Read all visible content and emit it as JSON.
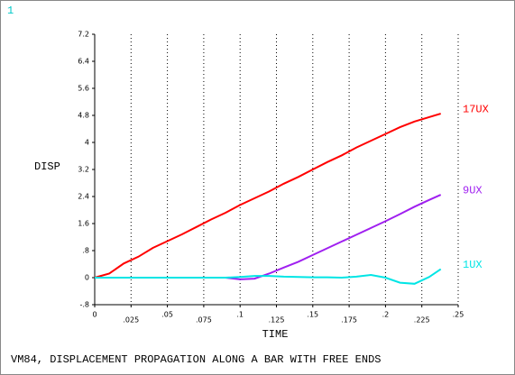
{
  "chart_data": {
    "type": "line",
    "window_label": "1",
    "title": "VM84, DISPLACEMENT PROPAGATION ALONG A BAR WITH FREE ENDS",
    "x_label": "TIME",
    "y_label": "DISP",
    "x": [
      0,
      0.01,
      0.02,
      0.03,
      0.04,
      0.05,
      0.06,
      0.07,
      0.08,
      0.09,
      0.1,
      0.11,
      0.12,
      0.13,
      0.14,
      0.15,
      0.16,
      0.17,
      0.18,
      0.19,
      0.2,
      0.21,
      0.22,
      0.23,
      0.238
    ],
    "series": [
      {
        "name": "17UX",
        "color": "#ff0000",
        "values": [
          0,
          0.12,
          0.42,
          0.62,
          0.88,
          1.08,
          1.28,
          1.5,
          1.72,
          1.92,
          2.15,
          2.35,
          2.55,
          2.78,
          2.98,
          3.2,
          3.42,
          3.62,
          3.85,
          4.05,
          4.25,
          4.45,
          4.62,
          4.75,
          4.85
        ]
      },
      {
        "name": "9UX",
        "color": "#a020f0",
        "values": [
          0,
          0,
          0,
          0,
          0,
          0,
          0,
          0,
          0,
          0,
          -0.05,
          -0.03,
          0.12,
          0.3,
          0.47,
          0.67,
          0.87,
          1.07,
          1.27,
          1.47,
          1.67,
          1.88,
          2.1,
          2.3,
          2.45
        ]
      },
      {
        "name": "1UX",
        "color": "#00e5e5",
        "values": [
          0,
          0,
          0,
          0,
          0,
          0,
          0,
          0,
          0,
          0,
          0.02,
          0.05,
          0.05,
          0.03,
          0.02,
          0.01,
          0.01,
          0,
          0.03,
          0.08,
          0,
          -0.15,
          -0.18,
          0.02,
          0.25
        ]
      }
    ],
    "xlim": [
      0,
      0.25
    ],
    "ylim": [
      -0.8,
      7.2
    ],
    "xticks": [
      0,
      {
        "value": 0.025,
        "label": ".025"
      },
      {
        "value": 0.05,
        "label": ".05"
      },
      {
        "value": 0.075,
        "label": ".075"
      },
      {
        "value": 0.1,
        "label": ".1"
      },
      {
        "value": 0.125,
        "label": ".125"
      },
      {
        "value": 0.15,
        "label": ".15"
      },
      {
        "value": 0.175,
        "label": ".175"
      },
      {
        "value": 0.2,
        "label": ".2"
      },
      {
        "value": 0.225,
        "label": ".225"
      },
      {
        "value": 0.25,
        "label": ".25"
      }
    ],
    "yticks": [
      {
        "value": -0.8,
        "label": "-.8"
      },
      0,
      {
        "value": 0.8,
        "label": ".8"
      },
      1.6,
      2.4,
      3.2,
      4,
      4.8,
      5.6,
      6.4,
      7.2
    ],
    "grid": "x"
  }
}
